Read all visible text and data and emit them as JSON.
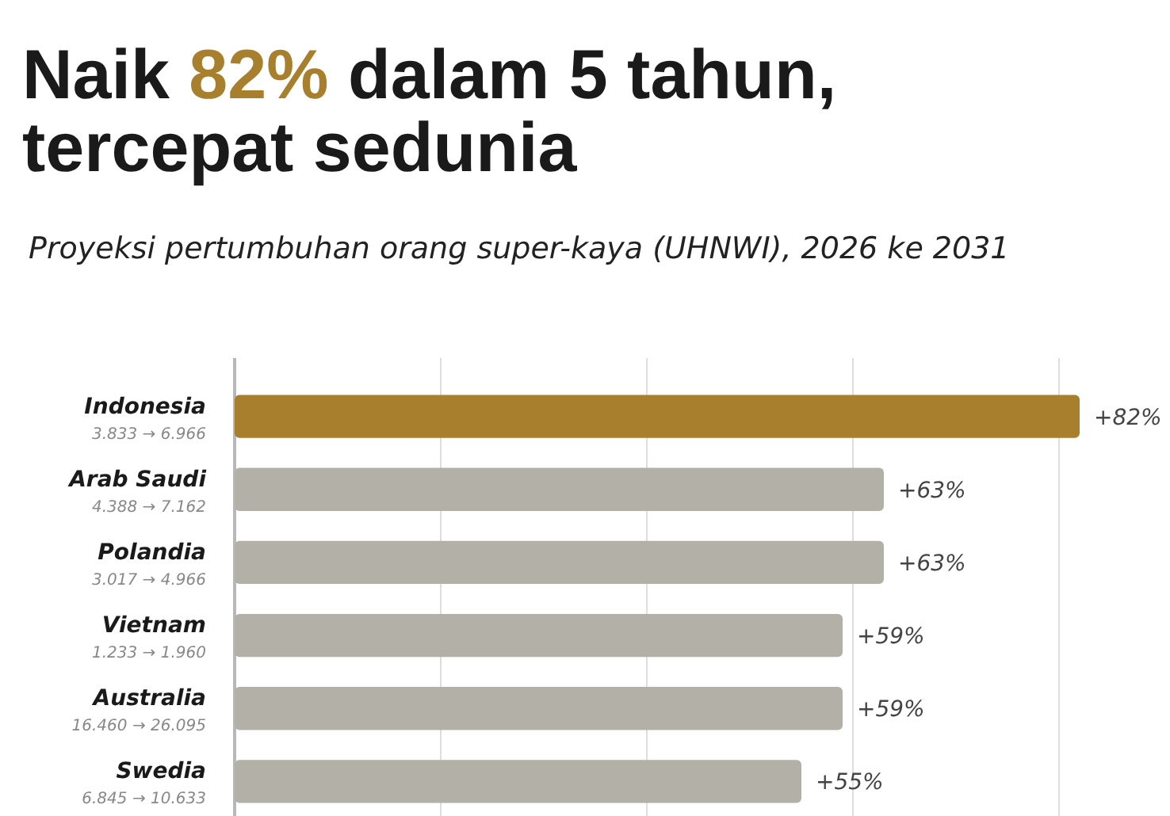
{
  "chart_data": {
    "type": "bar",
    "orientation": "horizontal",
    "title": "Naik 82% dalam 5 tahun,\ntercepat sedunia",
    "subtitle": "Proyeksi pertumbuhan orang super-kaya (UHNWI), 2026 ke 2031",
    "categories": [
      "Indonesia\n3.833 → 6.966",
      "Arab Saudi\n4.388 → 7.162",
      "Polandia\n3.017 → 4.966",
      "Vietnam\n1.233 → 1.960",
      "Australia\n16.460 → 26.095",
      "Swedia\n6.845 → 10.633"
    ],
    "values": [
      82,
      63,
      63,
      59,
      59,
      55
    ],
    "colors": [
      "#a87f2c",
      "#b3b0a7",
      "#b3b0a7",
      "#b3b0a7",
      "#b3b0a7",
      "#b3b0a7"
    ],
    "value_labels": [
      "+82%",
      "+63%",
      "+63%",
      "+59%",
      "+59%",
      "+55%"
    ],
    "xticks": [
      {
        "value": 0,
        "label": null
      },
      {
        "value": 20,
        "label": null
      },
      {
        "value": 40,
        "label": null
      },
      {
        "value": 60,
        "label": null
      },
      {
        "value": 80,
        "label": null
      }
    ],
    "tick_labels": "y",
    "grid": "x"
  }
}
